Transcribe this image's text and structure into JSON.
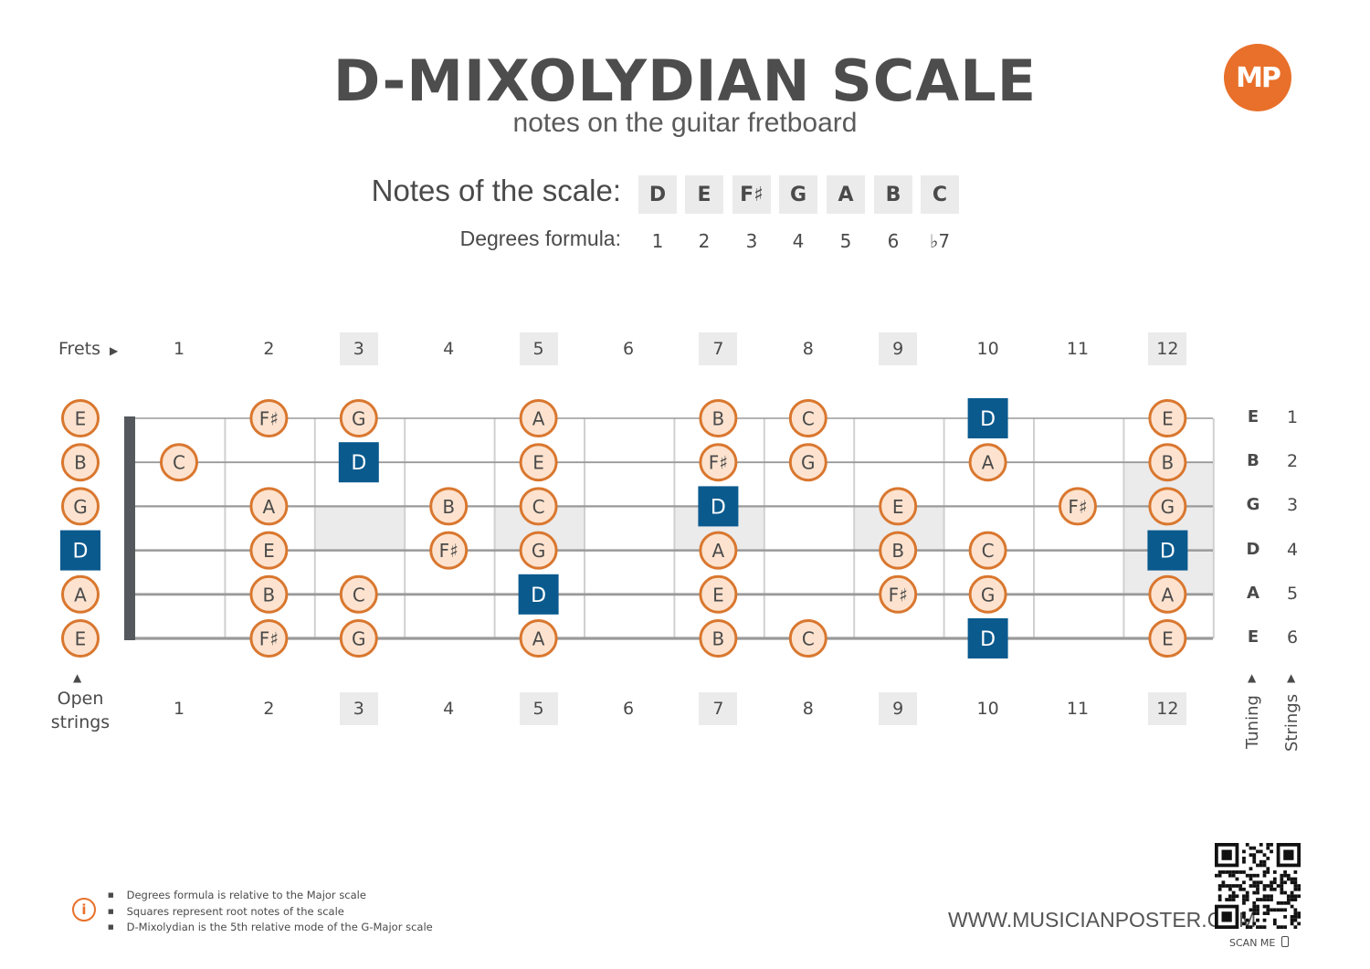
{
  "title": "D-MIXOLYDIAN SCALE",
  "subtitle": "notes on the guitar fretboard",
  "logo_text": "MP",
  "scale": {
    "label": "Notes of the scale:",
    "notes": [
      "D",
      "E",
      "F♯",
      "G",
      "A",
      "B",
      "C"
    ],
    "degrees_label": "Degrees formula:",
    "degrees": [
      "1",
      "2",
      "3",
      "4",
      "5",
      "6",
      "♭7"
    ]
  },
  "frets_label": "Frets",
  "fret_numbers": [
    "1",
    "2",
    "3",
    "4",
    "5",
    "6",
    "7",
    "8",
    "9",
    "10",
    "11",
    "12"
  ],
  "marked_frets": [
    3,
    5,
    7,
    9,
    12
  ],
  "open_strings_label": [
    "Open",
    "strings"
  ],
  "tuning": [
    "E",
    "B",
    "G",
    "D",
    "A",
    "E"
  ],
  "string_numbers": [
    "1",
    "2",
    "3",
    "4",
    "5",
    "6"
  ],
  "tuning_label": "Tuning",
  "strings_label": "Strings",
  "root_note": "D",
  "open_notes": [
    "E",
    "B",
    "G",
    "D",
    "A",
    "E"
  ],
  "fret_notes": [
    [
      "",
      "F♯",
      "G",
      "",
      "A",
      "",
      "B",
      "C",
      "",
      "D",
      "",
      "E"
    ],
    [
      "C",
      "",
      "D",
      "",
      "E",
      "",
      "F♯",
      "G",
      "",
      "A",
      "",
      "B"
    ],
    [
      "",
      "A",
      "",
      "B",
      "C",
      "",
      "D",
      "",
      "E",
      "",
      "F♯",
      "G"
    ],
    [
      "",
      "E",
      "",
      "F♯",
      "G",
      "",
      "A",
      "",
      "B",
      "C",
      "",
      "D"
    ],
    [
      "",
      "B",
      "C",
      "",
      "D",
      "",
      "E",
      "",
      "F♯",
      "G",
      "",
      "A"
    ],
    [
      "",
      "F♯",
      "G",
      "",
      "A",
      "",
      "B",
      "C",
      "",
      "D",
      "",
      "E"
    ]
  ],
  "info_notes": [
    "Degrees formula is relative to the Major scale",
    "Squares represent root notes of the scale",
    "D-Mixolydian is the 5th relative mode of the G-Major scale"
  ],
  "website": "WWW.MUSICIANPOSTER.COM",
  "scan_label": "SCAN ME",
  "colors": {
    "circle_fill": "#fde3cf",
    "circle_stroke": "#d9772f",
    "root_fill": "#0a5a8e",
    "accent": "#e8702a",
    "marker_bg": "#ebebeb"
  }
}
